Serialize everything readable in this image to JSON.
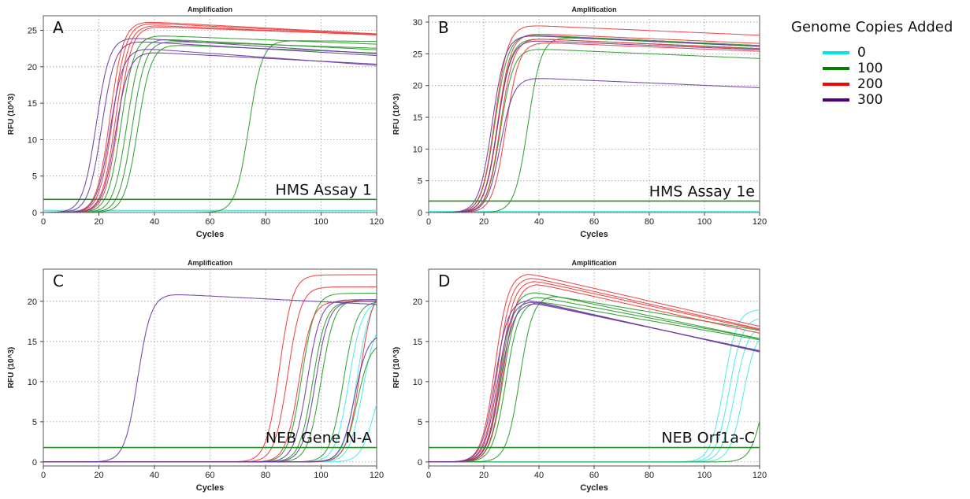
{
  "colors": {
    "0": "#4de8e8",
    "100": "#2e9a2e",
    "200": "#ee3b3b",
    "300": "#6a3aa0",
    "threshold": "#228b22"
  },
  "legend": {
    "title": "Genome Copies Added",
    "items": [
      {
        "label": "0",
        "color": "#00e5e5"
      },
      {
        "label": "100",
        "color": "#008000"
      },
      {
        "label": "200",
        "color": "#ff0000"
      },
      {
        "label": "300",
        "color": "#4b0082"
      }
    ]
  },
  "chart_data": [
    {
      "type": "line",
      "title": "Amplification",
      "panel_letter": "A",
      "assay_label": "HMS Assay 1",
      "xlabel": "Cycles",
      "ylabel": "RFU (10^3)",
      "xlim": [
        0,
        120
      ],
      "ylim": [
        0,
        27
      ],
      "xticks": [
        0,
        20,
        40,
        60,
        80,
        100,
        120
      ],
      "yticks": [
        0,
        5,
        10,
        15,
        20,
        25
      ],
      "threshold": 1.8,
      "grid": true,
      "x": "cycles 0-120",
      "series": [
        {
          "group": "0",
          "ct": 0,
          "plateau": 0.3,
          "decline": 0
        },
        {
          "group": "0",
          "ct": 0,
          "plateau": 0.2,
          "decline": 0
        },
        {
          "group": "100",
          "ct": 28,
          "plateau": 24.3,
          "decline": 1.2
        },
        {
          "group": "100",
          "ct": 30,
          "plateau": 23.8,
          "decline": 1.5
        },
        {
          "group": "100",
          "ct": 32,
          "plateau": 23.5,
          "decline": 1.0
        },
        {
          "group": "100",
          "ct": 34,
          "plateau": 23.0,
          "decline": 1.2
        },
        {
          "group": "100",
          "ct": 74,
          "plateau": 23.6,
          "decline": 0.3
        },
        {
          "group": "200",
          "ct": 24,
          "plateau": 26.2,
          "decline": 1.6
        },
        {
          "group": "200",
          "ct": 25,
          "plateau": 26.0,
          "decline": 1.5
        },
        {
          "group": "200",
          "ct": 26,
          "plateau": 25.7,
          "decline": 1.3
        },
        {
          "group": "200",
          "ct": 27,
          "plateau": 25.5,
          "decline": 1.1
        },
        {
          "group": "300",
          "ct": 19,
          "plateau": 24.0,
          "decline": 2.0
        },
        {
          "group": "300",
          "ct": 21,
          "plateau": 23.5,
          "decline": 1.8
        },
        {
          "group": "300",
          "ct": 24,
          "plateau": 22.5,
          "decline": 2.2
        },
        {
          "group": "300",
          "ct": 26,
          "plateau": 22.0,
          "decline": 1.6
        }
      ]
    },
    {
      "type": "line",
      "title": "Amplification",
      "panel_letter": "B",
      "assay_label": "HMS Assay 1e",
      "xlabel": "Cycles",
      "ylabel": "RFU (10^3)",
      "xlim": [
        0,
        120
      ],
      "ylim": [
        0,
        31
      ],
      "xticks": [
        0,
        20,
        40,
        60,
        80,
        100,
        120
      ],
      "yticks": [
        0,
        5,
        10,
        15,
        20,
        25,
        30
      ],
      "threshold": 1.8,
      "grid": true,
      "x": "cycles 0-120",
      "series": [
        {
          "group": "0",
          "ct": 0,
          "plateau": 0.2,
          "decline": 0
        },
        {
          "group": "0",
          "ct": 0,
          "plateau": 0.1,
          "decline": 0
        },
        {
          "group": "100",
          "ct": 24,
          "plateau": 28.0,
          "decline": 1.6
        },
        {
          "group": "100",
          "ct": 25,
          "plateau": 27.4,
          "decline": 1.5
        },
        {
          "group": "100",
          "ct": 26,
          "plateau": 25.8,
          "decline": 1.5
        },
        {
          "group": "100",
          "ct": 36,
          "plateau": 27.6,
          "decline": 1.6
        },
        {
          "group": "200",
          "ct": 24,
          "plateau": 29.5,
          "decline": 1.5
        },
        {
          "group": "200",
          "ct": 25,
          "plateau": 28.2,
          "decline": 1.5
        },
        {
          "group": "200",
          "ct": 26,
          "plateau": 27.4,
          "decline": 1.6
        },
        {
          "group": "200",
          "ct": 28,
          "plateau": 26.8,
          "decline": 1.4
        },
        {
          "group": "300",
          "ct": 23,
          "plateau": 27.9,
          "decline": 1.6
        },
        {
          "group": "300",
          "ct": 25,
          "plateau": 27.1,
          "decline": 1.4
        },
        {
          "group": "300",
          "ct": 26,
          "plateau": 21.2,
          "decline": 1.5
        }
      ]
    },
    {
      "type": "line",
      "title": "Amplification",
      "panel_letter": "C",
      "assay_label": "NEB Gene N-A",
      "xlabel": "Cycles",
      "ylabel": "RFU (10^3)",
      "xlim": [
        0,
        120
      ],
      "ylim": [
        -0.5,
        24
      ],
      "xticks": [
        0,
        20,
        40,
        60,
        80,
        100,
        120
      ],
      "yticks": [
        0,
        5,
        10,
        15,
        20
      ],
      "threshold": 1.8,
      "grid": true,
      "x": "cycles 0-120",
      "series": [
        {
          "group": "0",
          "ct": 110,
          "plateau": 20.0,
          "decline": 0
        },
        {
          "group": "0",
          "ct": 113,
          "plateau": 21.0,
          "decline": 0
        },
        {
          "group": "0",
          "ct": 115,
          "plateau": 18.0,
          "decline": 0
        },
        {
          "group": "0",
          "ct": 119,
          "plateau": 12.0,
          "decline": 0
        },
        {
          "group": "100",
          "ct": 93,
          "plateau": 21.0,
          "decline": 0
        },
        {
          "group": "100",
          "ct": 97,
          "plateau": 20.0,
          "decline": 0
        },
        {
          "group": "100",
          "ct": 100,
          "plateau": 20.2,
          "decline": 0
        },
        {
          "group": "100",
          "ct": 108,
          "plateau": 20.0,
          "decline": 0
        },
        {
          "group": "100",
          "ct": 113,
          "plateau": 15.0,
          "decline": 0
        },
        {
          "group": "200",
          "ct": 85,
          "plateau": 23.3,
          "decline": 0
        },
        {
          "group": "200",
          "ct": 88,
          "plateau": 21.8,
          "decline": 0
        },
        {
          "group": "200",
          "ct": 92,
          "plateau": 20.0,
          "decline": 0
        },
        {
          "group": "200",
          "ct": 114,
          "plateau": 22.0,
          "decline": 0
        },
        {
          "group": "300",
          "ct": 34,
          "plateau": 20.9,
          "decline": 1.4
        },
        {
          "group": "300",
          "ct": 95,
          "plateau": 20.2,
          "decline": 0
        },
        {
          "group": "300",
          "ct": 98,
          "plateau": 20.0,
          "decline": 0
        },
        {
          "group": "300",
          "ct": 112,
          "plateau": 16.0,
          "decline": 0
        }
      ]
    },
    {
      "type": "line",
      "title": "Amplification",
      "panel_letter": "D",
      "assay_label": "NEB Orf1a-C",
      "xlabel": "Cycles",
      "ylabel": "RFU (10^3)",
      "xlim": [
        0,
        120
      ],
      "ylim": [
        -0.5,
        24
      ],
      "xticks": [
        0,
        20,
        40,
        60,
        80,
        100,
        120
      ],
      "yticks": [
        0,
        5,
        10,
        15,
        20
      ],
      "threshold": 1.8,
      "grid": true,
      "x": "cycles 0-120",
      "series": [
        {
          "group": "0",
          "ct": 107,
          "plateau": 19.0,
          "decline": 0
        },
        {
          "group": "0",
          "ct": 109,
          "plateau": 18.0,
          "decline": 0
        },
        {
          "group": "0",
          "ct": 111,
          "plateau": 17.0,
          "decline": 0
        },
        {
          "group": "0",
          "ct": 114,
          "plateau": 16.5,
          "decline": 0
        },
        {
          "group": "100",
          "ct": 26,
          "plateau": 21.2,
          "decline": 5.7
        },
        {
          "group": "100",
          "ct": 27,
          "plateau": 20.6,
          "decline": 5.2
        },
        {
          "group": "100",
          "ct": 28,
          "plateau": 20.0,
          "decline": 4.8
        },
        {
          "group": "100",
          "ct": 33,
          "plateau": 20.7,
          "decline": 4.6
        },
        {
          "group": "100",
          "ct": 122,
          "plateau": 17.0,
          "decline": 0
        },
        {
          "group": "200",
          "ct": 24,
          "plateau": 23.5,
          "decline": 6.3
        },
        {
          "group": "200",
          "ct": 25,
          "plateau": 23.0,
          "decline": 6.2
        },
        {
          "group": "200",
          "ct": 26,
          "plateau": 22.6,
          "decline": 6.0
        },
        {
          "group": "200",
          "ct": 27,
          "plateau": 22.2,
          "decline": 6.1
        },
        {
          "group": "300",
          "ct": 24,
          "plateau": 20.2,
          "decline": 6.2
        },
        {
          "group": "300",
          "ct": 25,
          "plateau": 20.0,
          "decline": 6.0
        },
        {
          "group": "300",
          "ct": 26,
          "plateau": 19.8,
          "decline": 5.8
        }
      ]
    }
  ]
}
